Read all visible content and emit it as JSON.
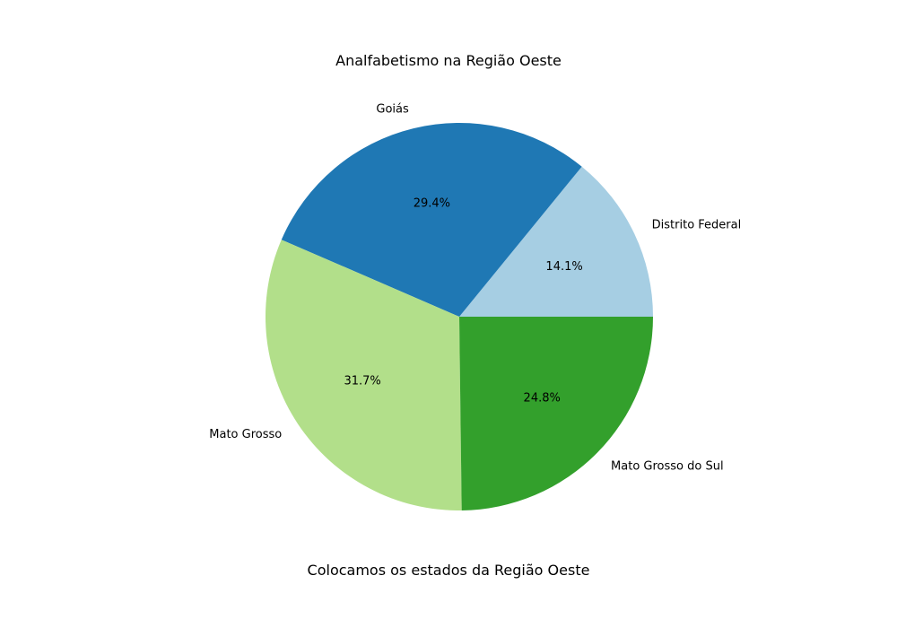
{
  "chart_data": {
    "type": "pie",
    "title": "Analfabetismo na Região Oeste",
    "caption": "Colocamos os estados da Região Oeste",
    "legend": "none",
    "categories": [
      "Distrito Federal",
      "Goiás",
      "Mato Grosso",
      "Mato Grosso do Sul"
    ],
    "values": [
      14.1,
      29.4,
      31.7,
      24.8
    ],
    "percent_labels": [
      "14.1%",
      "29.4%",
      "31.7%",
      "24.8%"
    ],
    "colors": [
      "#a6cee3",
      "#1f78b4",
      "#b2df8a",
      "#33a02c"
    ],
    "start_angle_deg": 0,
    "direction": "counterclockwise"
  }
}
